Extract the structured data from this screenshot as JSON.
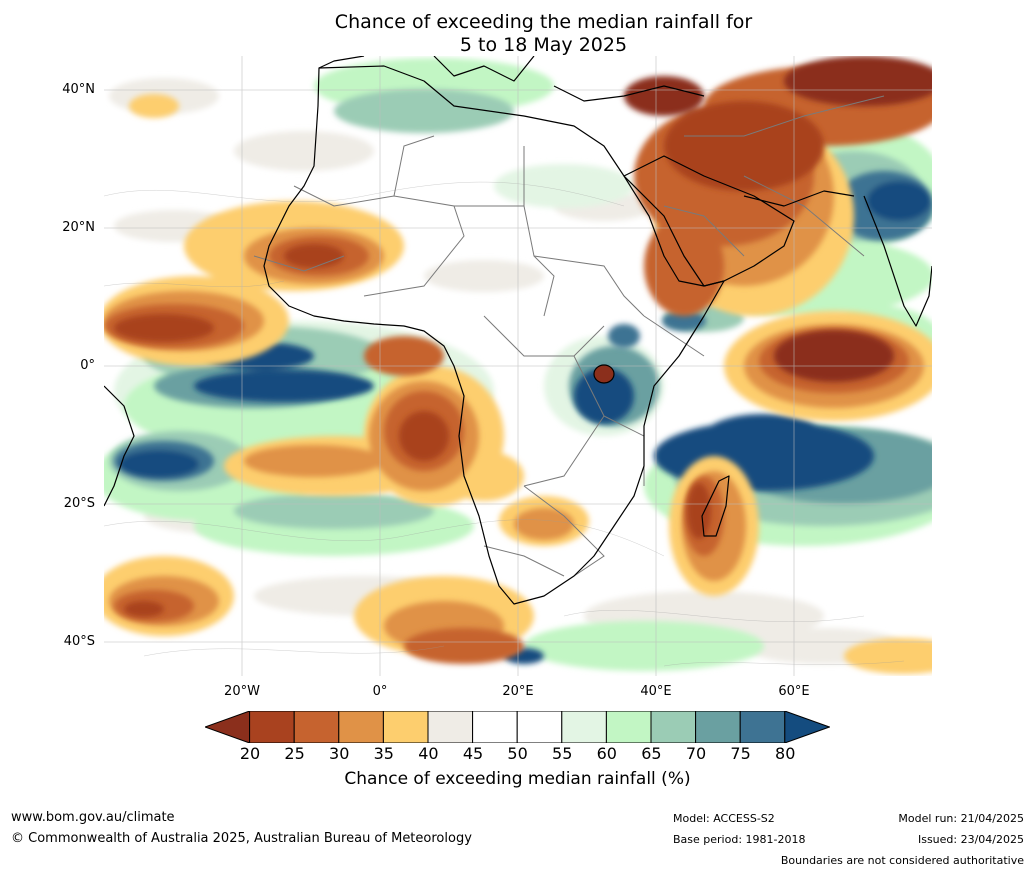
{
  "title": {
    "line1": "Chance of exceeding the median rainfall for",
    "line2": "5 to 18 May 2025"
  },
  "axes": {
    "lat_labels": [
      "40°N",
      "20°N",
      "0°",
      "20°S",
      "40°S"
    ],
    "lon_labels": [
      "20°W",
      "0°",
      "20°E",
      "40°E",
      "60°E"
    ]
  },
  "colorbar": {
    "ticks": [
      "20",
      "25",
      "30",
      "35",
      "40",
      "45",
      "50",
      "55",
      "60",
      "65",
      "70",
      "75",
      "80"
    ],
    "colors": [
      "#8b2f1c",
      "#a9421f",
      "#c6632f",
      "#e09247",
      "#fdce6e",
      "#efece6",
      "#ffffff",
      "#ffffff",
      "#e3f5e4",
      "#c2f6c4",
      "#9bccb5",
      "#6aa0a1",
      "#3e7393",
      "#144c7f"
    ],
    "title": "Chance of exceeding median rainfall (%)"
  },
  "footer": {
    "website": "www.bom.gov.au/climate",
    "copyright": "© Commonwealth of Australia 2025, Australian Bureau of Meteorology",
    "model": "Model: ACCESS-S2",
    "base_period": "Base period: 1981-2018",
    "model_run": "Model run: 21/04/2025",
    "issued": "Issued: 23/04/2025",
    "disclaimer": "Boundaries are not considered authoritative"
  }
}
